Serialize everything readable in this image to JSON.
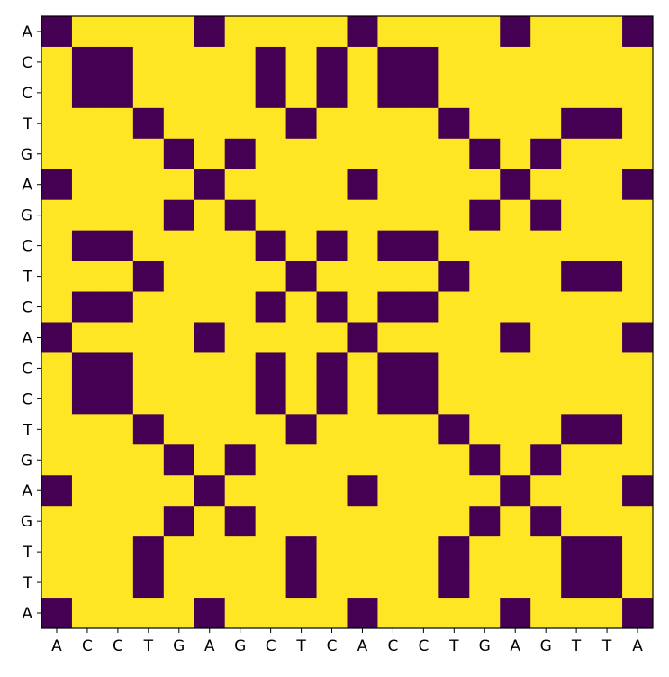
{
  "chart_data": {
    "type": "heatmap",
    "title": "",
    "xlabel": "",
    "ylabel": "",
    "x_sequence": [
      "A",
      "C",
      "C",
      "T",
      "G",
      "A",
      "G",
      "C",
      "T",
      "C",
      "A",
      "C",
      "C",
      "T",
      "G",
      "A",
      "G",
      "T",
      "T",
      "A"
    ],
    "y_sequence": [
      "A",
      "C",
      "C",
      "T",
      "G",
      "A",
      "G",
      "C",
      "T",
      "C",
      "A",
      "C",
      "C",
      "T",
      "G",
      "A",
      "G",
      "T",
      "T",
      "A"
    ],
    "match_rule": "cell is dark where row letter equals column letter",
    "colormap": {
      "match": "#440154",
      "mismatch": "#fde725"
    },
    "grid": false,
    "legend": "none"
  }
}
